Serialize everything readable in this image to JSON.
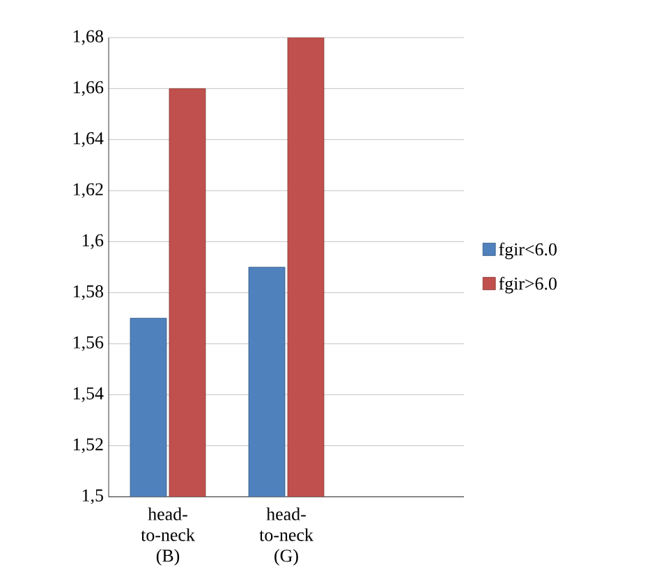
{
  "chart_data": {
    "type": "bar",
    "categories": [
      "head-to-neck (B)",
      "head-to-neck (G)"
    ],
    "series": [
      {
        "name": "fgir<6.0",
        "color": "#4f81bd",
        "values": [
          1.57,
          1.59
        ]
      },
      {
        "name": "fgir>6.0",
        "color": "#c0504d",
        "values": [
          1.66,
          1.68
        ]
      }
    ],
    "ylim": [
      1.5,
      1.68
    ],
    "yticks": [
      {
        "value": 1.5,
        "label": "1,5"
      },
      {
        "value": 1.52,
        "label": "1,52"
      },
      {
        "value": 1.54,
        "label": "1,54"
      },
      {
        "value": 1.56,
        "label": "1,56"
      },
      {
        "value": 1.58,
        "label": "1,58"
      },
      {
        "value": 1.6,
        "label": "1,6"
      },
      {
        "value": 1.62,
        "label": "1,62"
      },
      {
        "value": 1.64,
        "label": "1,64"
      },
      {
        "value": 1.66,
        "label": "1,66"
      },
      {
        "value": 1.68,
        "label": "1,68"
      }
    ],
    "grid": "y",
    "legend": "right"
  }
}
